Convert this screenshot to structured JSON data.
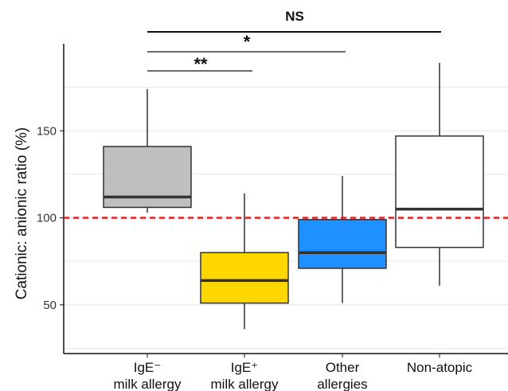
{
  "chart_data": {
    "type": "box",
    "ylabel": "Cationic: anionic ratio (%)",
    "ylim": [
      22,
      200
    ],
    "yticks": [
      50,
      100,
      150
    ],
    "grid": true,
    "reference_line": {
      "y": 100,
      "color": "#e02020",
      "style": "dashed"
    },
    "categories": [
      {
        "lines": [
          "IgE⁻",
          "milk allergy"
        ]
      },
      {
        "lines": [
          "IgE⁺",
          "milk allergy"
        ]
      },
      {
        "lines": [
          "Other",
          "allergies"
        ]
      },
      {
        "lines": [
          "Non-atopic"
        ]
      }
    ],
    "boxes": [
      {
        "whisker_low": 103,
        "q1": 106,
        "median": 112,
        "q3": 141,
        "whisker_high": 174,
        "color": "#bfbfbf"
      },
      {
        "whisker_low": 36,
        "q1": 51,
        "median": 64,
        "q3": 80,
        "whisker_high": 114,
        "color": "#ffd700"
      },
      {
        "whisker_low": 51,
        "q1": 71,
        "median": 80,
        "q3": 99,
        "whisker_high": 124,
        "color": "#1e90ff"
      },
      {
        "whisker_low": 61,
        "q1": 83,
        "median": 105,
        "q3": 147,
        "whisker_high": 189,
        "color": "#ffffff"
      }
    ],
    "significance": [
      {
        "from": 0,
        "to": 1,
        "label": "**"
      },
      {
        "from": 0,
        "to": 2,
        "label": "*"
      },
      {
        "from": 0,
        "to": 3,
        "label": "NS"
      }
    ]
  }
}
